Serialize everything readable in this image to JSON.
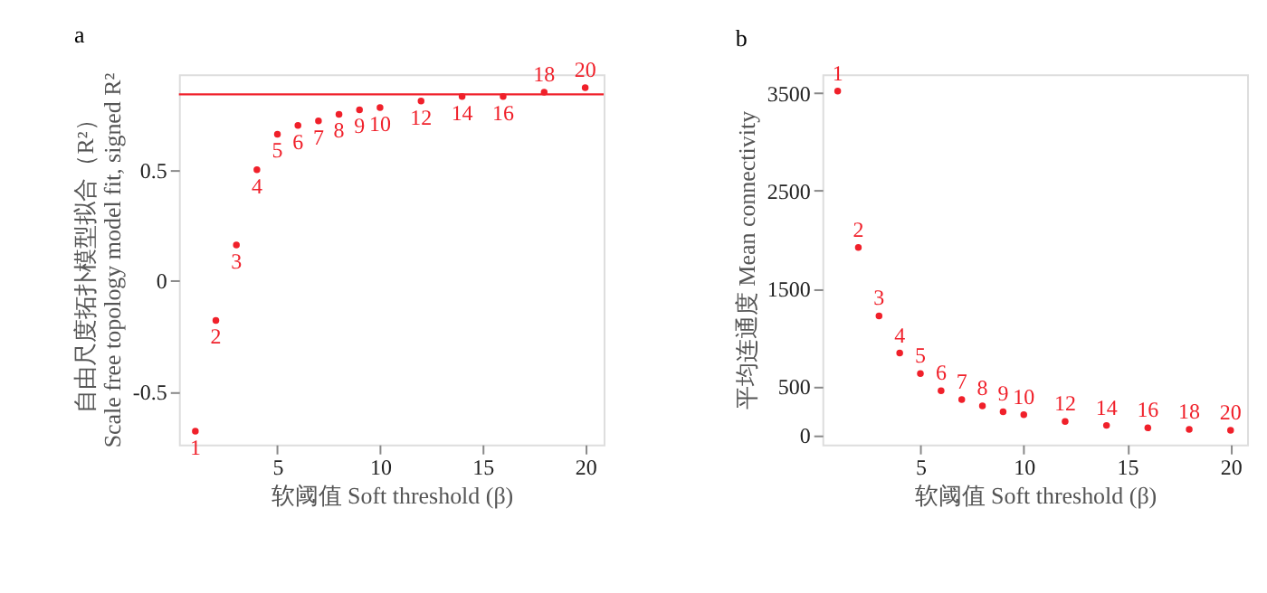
{
  "chart_data": [
    {
      "type": "scatter",
      "title": "a",
      "xlabel": "软阈值 Soft threshold (β)",
      "ylabel": "自由尺度拓扑模型拟合（R²）\nScale free topology model fit, signed R²",
      "x": [
        1,
        2,
        3,
        4,
        5,
        6,
        7,
        8,
        9,
        10,
        12,
        14,
        16,
        18,
        20
      ],
      "series": [
        {
          "color": "#f0202a",
          "values": [
            -0.68,
            -0.18,
            0.16,
            0.5,
            0.66,
            0.7,
            0.72,
            0.75,
            0.77,
            0.78,
            0.81,
            0.83,
            0.83,
            0.85,
            0.87
          ]
        }
      ],
      "annotations": [
        {
          "text": "1",
          "x": 1,
          "y": -0.68
        },
        {
          "text": "2",
          "x": 2,
          "y": -0.18
        },
        {
          "text": "3",
          "x": 3,
          "y": 0.16
        },
        {
          "text": "4",
          "x": 4,
          "y": 0.5
        },
        {
          "text": "5",
          "x": 5,
          "y": 0.66
        },
        {
          "text": "6",
          "x": 6,
          "y": 0.7
        },
        {
          "text": "7",
          "x": 7,
          "y": 0.72
        },
        {
          "text": "8",
          "x": 8,
          "y": 0.75
        },
        {
          "text": "9",
          "x": 9,
          "y": 0.77
        },
        {
          "text": "10",
          "x": 10,
          "y": 0.78
        },
        {
          "text": "12",
          "x": 12,
          "y": 0.81
        },
        {
          "text": "14",
          "x": 14,
          "y": 0.83
        },
        {
          "text": "16",
          "x": 16,
          "y": 0.83
        },
        {
          "text": "18",
          "x": 18,
          "y": 0.85
        },
        {
          "text": "20",
          "x": 20,
          "y": 0.87
        }
      ],
      "xlim": [
        0.2,
        20.9
      ],
      "xticks": [
        5,
        10,
        15,
        20
      ],
      "ylim": [
        -0.74,
        0.93
      ],
      "yticks": [
        -0.5,
        0,
        0.5
      ],
      "grid": false,
      "ref_lines": [
        {
          "axis": "y",
          "value": 0.84,
          "color": "#f0202a"
        }
      ]
    },
    {
      "type": "scatter",
      "title": "b",
      "xlabel": "软阈值 Soft threshold (β)",
      "ylabel": "平均连通度 Mean connectivity",
      "x": [
        1,
        2,
        3,
        4,
        5,
        6,
        7,
        8,
        9,
        10,
        12,
        14,
        16,
        18,
        20
      ],
      "series": [
        {
          "color": "#f0202a",
          "values": [
            3520,
            1920,
            1220,
            840,
            630,
            455,
            365,
            300,
            240,
            210,
            140,
            100,
            75,
            60,
            50
          ]
        }
      ],
      "annotations": [
        {
          "text": "1",
          "x": 1,
          "y": 3520
        },
        {
          "text": "2",
          "x": 2,
          "y": 1920
        },
        {
          "text": "3",
          "x": 3,
          "y": 1220
        },
        {
          "text": "4",
          "x": 4,
          "y": 840
        },
        {
          "text": "5",
          "x": 5,
          "y": 630
        },
        {
          "text": "6",
          "x": 6,
          "y": 455
        },
        {
          "text": "7",
          "x": 7,
          "y": 365
        },
        {
          "text": "8",
          "x": 8,
          "y": 300
        },
        {
          "text": "9",
          "x": 9,
          "y": 240
        },
        {
          "text": "10",
          "x": 10,
          "y": 210
        },
        {
          "text": "12",
          "x": 12,
          "y": 140
        },
        {
          "text": "14",
          "x": 14,
          "y": 100
        },
        {
          "text": "16",
          "x": 16,
          "y": 75
        },
        {
          "text": "18",
          "x": 18,
          "y": 60
        },
        {
          "text": "20",
          "x": 20,
          "y": 50
        }
      ],
      "xlim": [
        0.26,
        20.8
      ],
      "xticks": [
        5,
        10,
        15,
        20
      ],
      "ylim": [
        -95,
        3690
      ],
      "yticks": [
        0,
        500,
        1500,
        2500,
        3500
      ],
      "grid": false
    }
  ]
}
